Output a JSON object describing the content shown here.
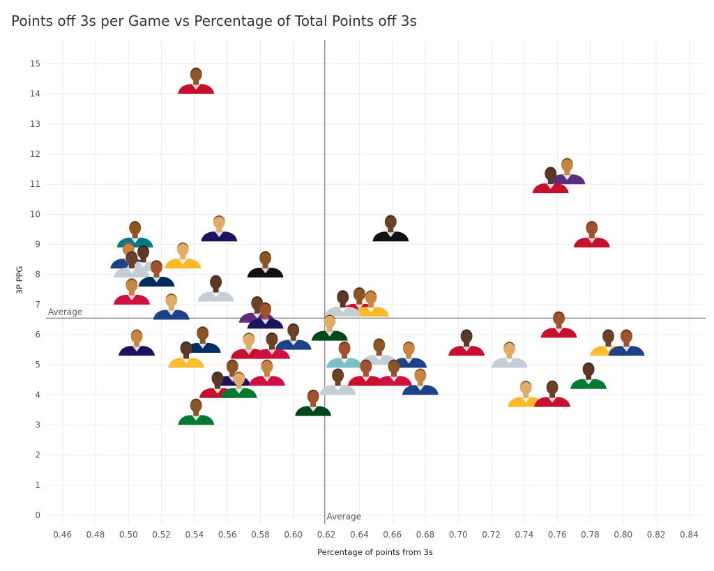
{
  "title": "Points off 3s per Game vs Percentage of Total Points off 3s",
  "chart_data": {
    "type": "scatter",
    "title": "Points off 3s per Game vs Percentage of Total Points off 3s",
    "xlabel": "Percentage of points from 3s",
    "ylabel": "3P PPG",
    "xlim": [
      0.45,
      0.85
    ],
    "ylim": [
      -0.3,
      15.8
    ],
    "x_ticks": [
      "0.46",
      "0.48",
      "0.50",
      "0.52",
      "0.54",
      "0.56",
      "0.58",
      "0.60",
      "0.62",
      "0.64",
      "0.66",
      "0.68",
      "0.70",
      "0.72",
      "0.74",
      "0.76",
      "0.78",
      "0.80",
      "0.82",
      "0.84"
    ],
    "y_ticks": [
      "0",
      "1",
      "2",
      "3",
      "4",
      "5",
      "6",
      "7",
      "8",
      "9",
      "10",
      "11",
      "12",
      "13",
      "14",
      "15"
    ],
    "grid": true,
    "reference_lines": {
      "x_average": 0.619,
      "x_average_label": "Average",
      "y_average": 6.55,
      "y_average_label": "Average"
    },
    "points": [
      {
        "x": 0.541,
        "y": 14.0,
        "jersey": "#c8102e"
      },
      {
        "x": 0.766,
        "y": 11.0,
        "jersey": "#5a2d81"
      },
      {
        "x": 0.756,
        "y": 10.7,
        "jersey": "#c8102e"
      },
      {
        "x": 0.555,
        "y": 9.1,
        "jersey": "#1d1160"
      },
      {
        "x": 0.659,
        "y": 9.1,
        "jersey": "#111111"
      },
      {
        "x": 0.781,
        "y": 8.9,
        "jersey": "#c8102e"
      },
      {
        "x": 0.504,
        "y": 8.9,
        "jersey": "#00788c"
      },
      {
        "x": 0.5,
        "y": 8.2,
        "jersey": "#1d428a"
      },
      {
        "x": 0.509,
        "y": 8.1,
        "jersey": "#c4ced4"
      },
      {
        "x": 0.533,
        "y": 8.2,
        "jersey": "#fdb927"
      },
      {
        "x": 0.502,
        "y": 7.9,
        "jersey": "#c4ced4"
      },
      {
        "x": 0.517,
        "y": 7.6,
        "jersey": "#002b5c"
      },
      {
        "x": 0.583,
        "y": 7.9,
        "jersey": "#111111"
      },
      {
        "x": 0.502,
        "y": 7.0,
        "jersey": "#ce1141"
      },
      {
        "x": 0.553,
        "y": 7.1,
        "jersey": "#c4ced4"
      },
      {
        "x": 0.526,
        "y": 6.5,
        "jersey": "#1d428a"
      },
      {
        "x": 0.578,
        "y": 6.4,
        "jersey": "#5a2d81"
      },
      {
        "x": 0.583,
        "y": 6.2,
        "jersey": "#1d1160"
      },
      {
        "x": 0.64,
        "y": 6.7,
        "jersey": "#c8102e"
      },
      {
        "x": 0.647,
        "y": 6.6,
        "jersey": "#fdb927"
      },
      {
        "x": 0.63,
        "y": 6.6,
        "jersey": "#c4ced4"
      },
      {
        "x": 0.622,
        "y": 5.8,
        "jersey": "#00471b"
      },
      {
        "x": 0.6,
        "y": 5.5,
        "jersey": "#1d428a"
      },
      {
        "x": 0.761,
        "y": 5.9,
        "jersey": "#c8102e"
      },
      {
        "x": 0.545,
        "y": 5.4,
        "jersey": "#002d62"
      },
      {
        "x": 0.505,
        "y": 5.3,
        "jersey": "#1d1160"
      },
      {
        "x": 0.535,
        "y": 4.9,
        "jersey": "#fdbb30"
      },
      {
        "x": 0.573,
        "y": 5.2,
        "jersey": "#c8102e"
      },
      {
        "x": 0.587,
        "y": 5.2,
        "jersey": "#ce1141"
      },
      {
        "x": 0.631,
        "y": 4.9,
        "jersey": "#7ac1c7"
      },
      {
        "x": 0.652,
        "y": 5.0,
        "jersey": "#c4ced4"
      },
      {
        "x": 0.67,
        "y": 4.9,
        "jersey": "#1d428a"
      },
      {
        "x": 0.705,
        "y": 5.3,
        "jersey": "#c8102e"
      },
      {
        "x": 0.731,
        "y": 4.9,
        "jersey": "#c4ced4"
      },
      {
        "x": 0.791,
        "y": 5.3,
        "jersey": "#fdbb30"
      },
      {
        "x": 0.802,
        "y": 5.3,
        "jersey": "#1d428a"
      },
      {
        "x": 0.563,
        "y": 4.3,
        "jersey": "#1d1160"
      },
      {
        "x": 0.584,
        "y": 4.3,
        "jersey": "#ce1141"
      },
      {
        "x": 0.554,
        "y": 3.9,
        "jersey": "#c8102e"
      },
      {
        "x": 0.567,
        "y": 3.9,
        "jersey": "#007a33"
      },
      {
        "x": 0.627,
        "y": 4.0,
        "jersey": "#c4ced4"
      },
      {
        "x": 0.644,
        "y": 4.3,
        "jersey": "#c8102e"
      },
      {
        "x": 0.661,
        "y": 4.3,
        "jersey": "#ce1141"
      },
      {
        "x": 0.677,
        "y": 4.0,
        "jersey": "#1d428a"
      },
      {
        "x": 0.779,
        "y": 4.2,
        "jersey": "#007a33"
      },
      {
        "x": 0.741,
        "y": 3.6,
        "jersey": "#fdb927"
      },
      {
        "x": 0.757,
        "y": 3.6,
        "jersey": "#c8102e"
      },
      {
        "x": 0.612,
        "y": 3.3,
        "jersey": "#00471b"
      },
      {
        "x": 0.541,
        "y": 3.0,
        "jersey": "#007a33"
      }
    ]
  }
}
